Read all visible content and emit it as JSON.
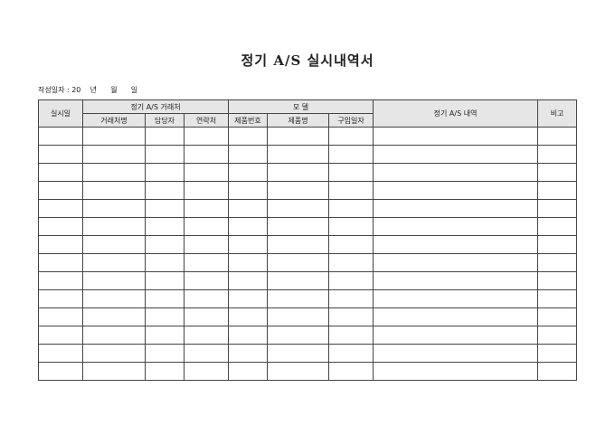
{
  "title": "정기 A/S 실시내역서",
  "date_line": "작성일자 : 20    년      월      일",
  "header": {
    "date": "실시일",
    "client_group": "정기 A/S 거래처",
    "client_name": "거래처명",
    "manager": "담당자",
    "contact": "연락처",
    "model_group": "모  델",
    "product_no": "제품번호",
    "product_name": "제품명",
    "purchase_date": "구입일자",
    "details": "정기 A/S 내역",
    "remarks": "비고"
  },
  "row_count": 14,
  "colors": {
    "header_bg": "#e6e6e6",
    "border": "#444444"
  }
}
